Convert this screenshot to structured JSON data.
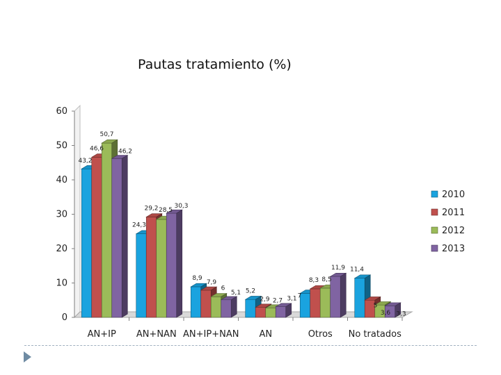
{
  "chart_data": {
    "type": "bar",
    "title": "Pautas tratamiento (%)",
    "categories": [
      "AN+IP",
      "AN+NAN",
      "AN+IP+NAN",
      "AN",
      "Otros",
      "No tratados"
    ],
    "series": [
      {
        "name": "2010",
        "color": "#1aa3df",
        "values": [
          43.2,
          24.3,
          8.9,
          5.2,
          7,
          11.4
        ],
        "labels": [
          "43,2",
          "24,3",
          "8,9",
          "5,2",
          "7",
          "11,4"
        ]
      },
      {
        "name": "2011",
        "color": "#c0504d",
        "values": [
          46.6,
          29.2,
          7.9,
          2.9,
          8.3,
          5
        ],
        "labels": [
          "46,6",
          "29,2",
          "7,9",
          "2,9",
          "8,3",
          "5"
        ]
      },
      {
        "name": "2012",
        "color": "#9bbb59",
        "values": [
          50.7,
          28.5,
          6,
          2.7,
          8.5,
          3.6
        ],
        "labels": [
          "50,7",
          "28,5",
          "6",
          "2,7",
          "8,5",
          "3,6"
        ]
      },
      {
        "name": "2013",
        "color": "#8064a2",
        "values": [
          46.2,
          30.3,
          5.1,
          3.1,
          11.9,
          3.3
        ],
        "labels": [
          "46,2",
          "30,3",
          "5,1",
          "3,1",
          "11,9",
          "3,3"
        ]
      }
    ],
    "ylim": [
      0,
      60
    ],
    "yticks": [
      0,
      10,
      20,
      30,
      40,
      50,
      60
    ],
    "grid": false,
    "legend": "right",
    "style": "3d-clustered-bar"
  }
}
